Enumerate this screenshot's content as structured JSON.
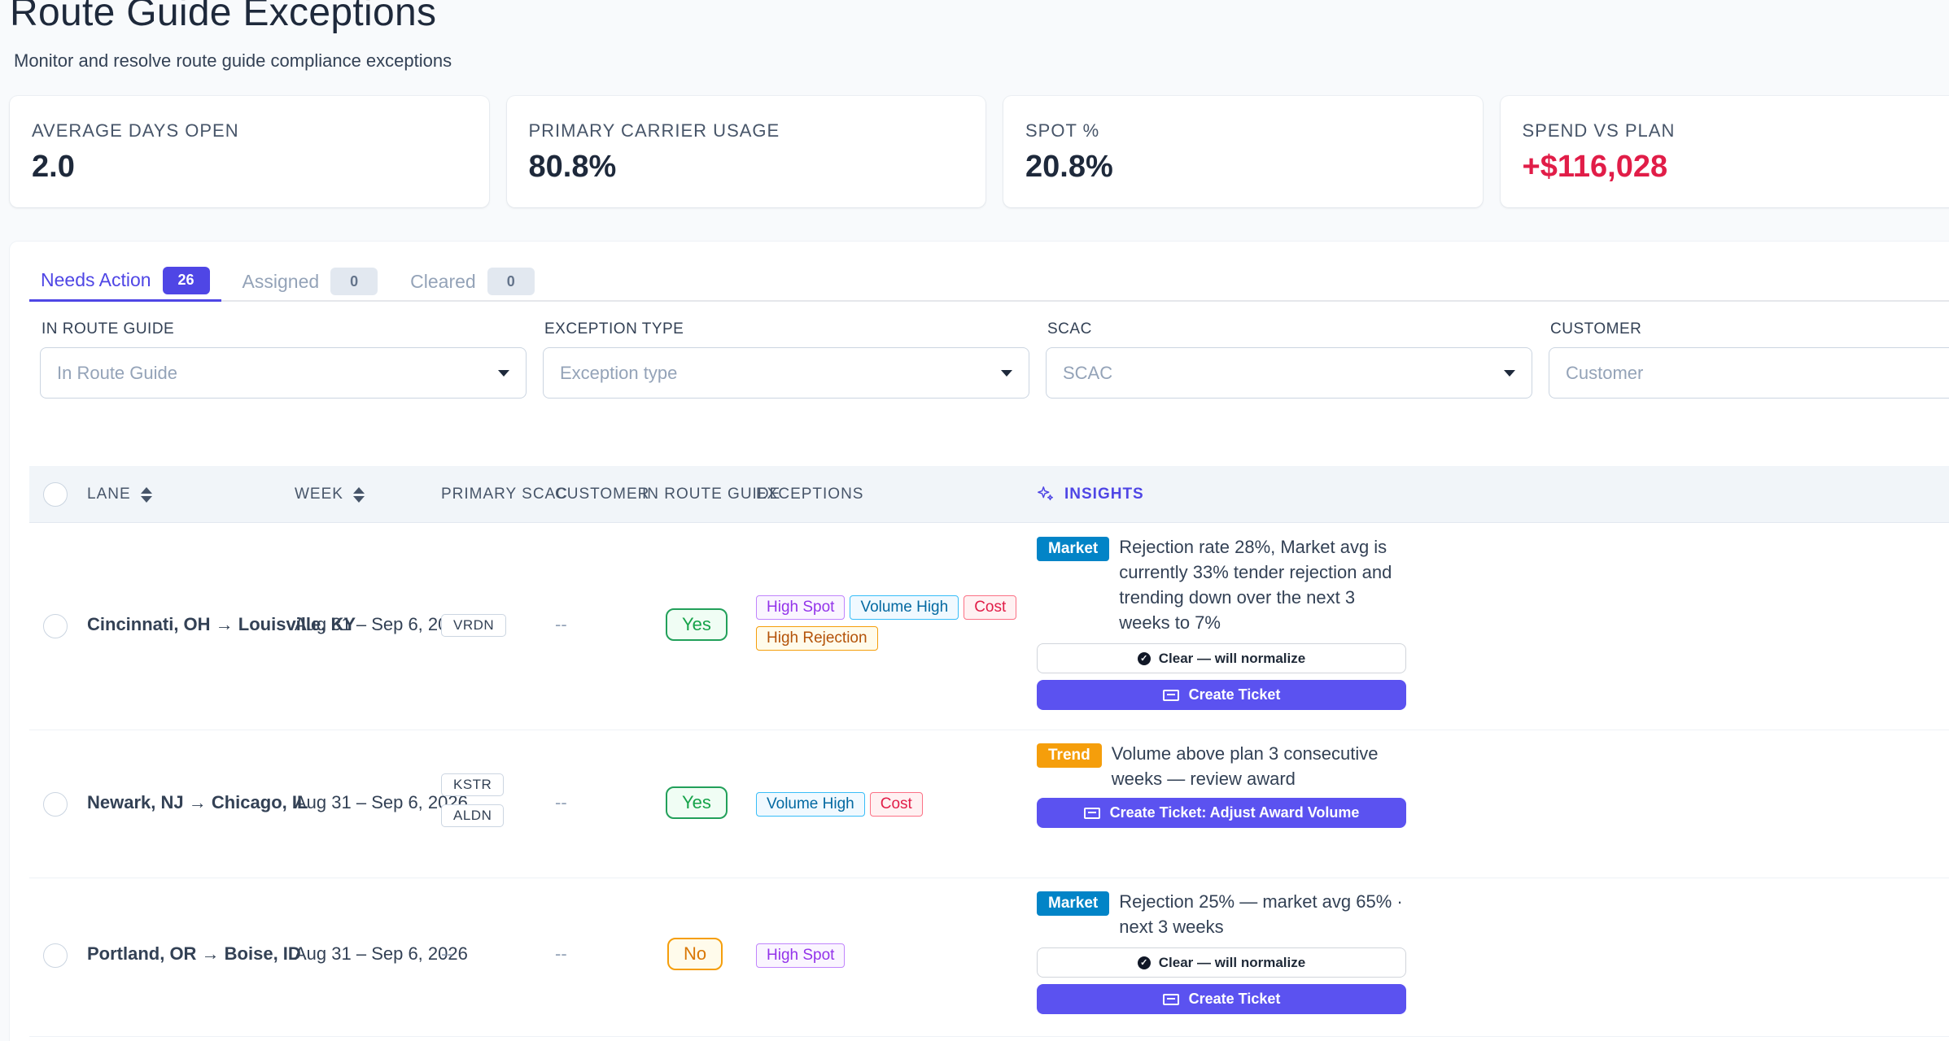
{
  "page": {
    "title": "Route Guide Exceptions",
    "subtitle": "Monitor and resolve route guide compliance exceptions"
  },
  "kpis": [
    {
      "label": "AVERAGE DAYS OPEN",
      "value": "2.0"
    },
    {
      "label": "PRIMARY CARRIER USAGE",
      "value": "80.8%"
    },
    {
      "label": "SPOT %",
      "value": "20.8%"
    },
    {
      "label": "SPEND VS PLAN",
      "value": "+$116,028",
      "color": "#e11d48"
    }
  ],
  "tabs": [
    {
      "label": "Needs Action",
      "count": "26",
      "active": true
    },
    {
      "label": "Assigned",
      "count": "0"
    },
    {
      "label": "Cleared",
      "count": "0"
    }
  ],
  "filters": [
    {
      "label": "IN ROUTE GUIDE",
      "placeholder": "In Route Guide"
    },
    {
      "label": "EXCEPTION TYPE",
      "placeholder": "Exception type"
    },
    {
      "label": "SCAC",
      "placeholder": "SCAC"
    },
    {
      "label": "CUSTOMER",
      "placeholder": "Customer"
    }
  ],
  "table": {
    "columns": {
      "lane": "LANE",
      "week": "WEEK",
      "scac": "PRIMARY SCAC",
      "customer": "CUSTOMER",
      "in_route_guide": "IN ROUTE GUIDE",
      "exceptions": "EXCEPTIONS",
      "insights": "INSIGHTS"
    },
    "rows": [
      {
        "lane": "Cincinnati, OH → Louisville, KY",
        "week": "Aug 31 – Sep 6, 2026",
        "scacs": [
          "VRDN"
        ],
        "customer": "--",
        "in_route_guide": "Yes",
        "exceptions": [
          "High Spot",
          "Volume High",
          "Cost",
          "High Rejection"
        ],
        "insight_badge": "Market",
        "insight_text": "Rejection rate 28%, Market avg is currently 33% tender rejection and trending down over the next 3 weeks to 7%",
        "clear_label": "Clear — will normalize",
        "action_label": "Create Ticket"
      },
      {
        "lane": "Newark, NJ → Chicago, IL",
        "week": "Aug 31 – Sep 6, 2026",
        "scacs": [
          "KSTR",
          "ALDN"
        ],
        "customer": "--",
        "in_route_guide": "Yes",
        "exceptions": [
          "Volume High",
          "Cost"
        ],
        "insight_badge": "Trend",
        "insight_text": "Volume above plan 3 consecutive weeks — review award",
        "action_label": "Create Ticket: Adjust Award Volume"
      },
      {
        "lane": "Portland, OR → Boise, ID",
        "week": "Aug 31 – Sep 6, 2026",
        "scac_text": "--",
        "customer": "--",
        "in_route_guide": "No",
        "exceptions": [
          "High Spot"
        ],
        "insight_badge": "Market",
        "insight_text": "Rejection 25% — market avg 65% · next 3 weeks",
        "clear_label": "Clear — will normalize",
        "action_label": "Create Ticket"
      }
    ]
  }
}
